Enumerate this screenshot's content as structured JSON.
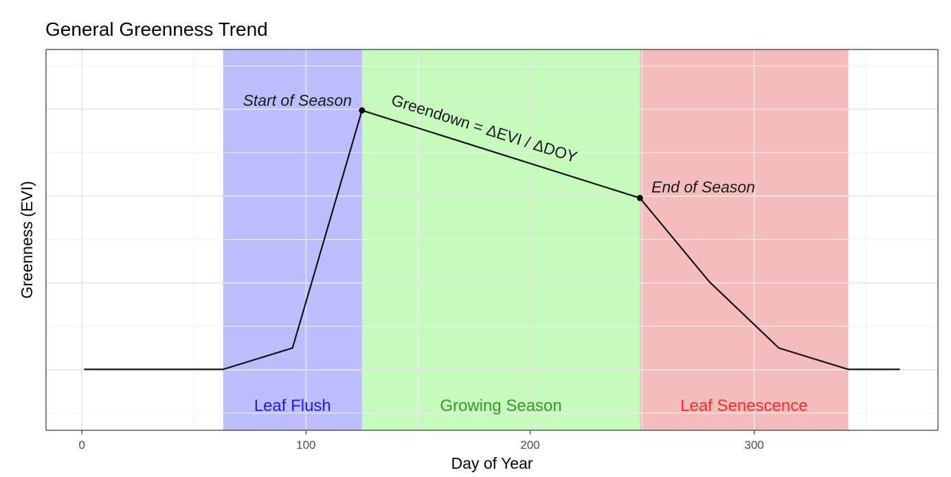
{
  "chart_data": {
    "type": "line",
    "title": "General Greenness Trend",
    "xlabel": "Day of Year",
    "ylabel": "Greenness (EVI)",
    "xlim": [
      -16,
      382
    ],
    "ylim": [
      0,
      1
    ],
    "x_ticks": [
      0,
      100,
      200,
      300
    ],
    "x_tick_labels": [
      "0",
      "100",
      "200",
      "300"
    ],
    "y_ticks_shown": false,
    "grid": true,
    "series": [
      {
        "x": [
          1,
          63,
          94,
          125,
          249,
          280,
          311,
          342,
          365
        ],
        "y": [
          0.16,
          0.16,
          0.216,
          0.84,
          0.61,
          0.39,
          0.216,
          0.16,
          0.16
        ]
      }
    ],
    "points": [
      {
        "x": 125,
        "y": 0.84
      },
      {
        "x": 249,
        "y": 0.61
      }
    ],
    "bands": [
      {
        "label": "Leaf Flush",
        "x_start": 63,
        "x_end": 125,
        "fill": "#0000ee",
        "opacity": 0.26,
        "label_color": "#1a1aff"
      },
      {
        "label": "Growing Season",
        "x_start": 125,
        "x_end": 249,
        "fill": "#33ee11",
        "opacity": 0.28,
        "label_color": "#3a9a2a"
      },
      {
        "label": "Leaf Senescence",
        "x_start": 249,
        "x_end": 342,
        "fill": "#dd2020",
        "opacity": 0.3,
        "label_color": "#ff2a2a"
      }
    ],
    "annotations": [
      {
        "text": "Start of Season",
        "italic": true
      },
      {
        "text": "End of Season",
        "italic": true
      },
      {
        "text": "Greendown = ΔEVI / ΔDOY",
        "italic": false
      }
    ]
  }
}
